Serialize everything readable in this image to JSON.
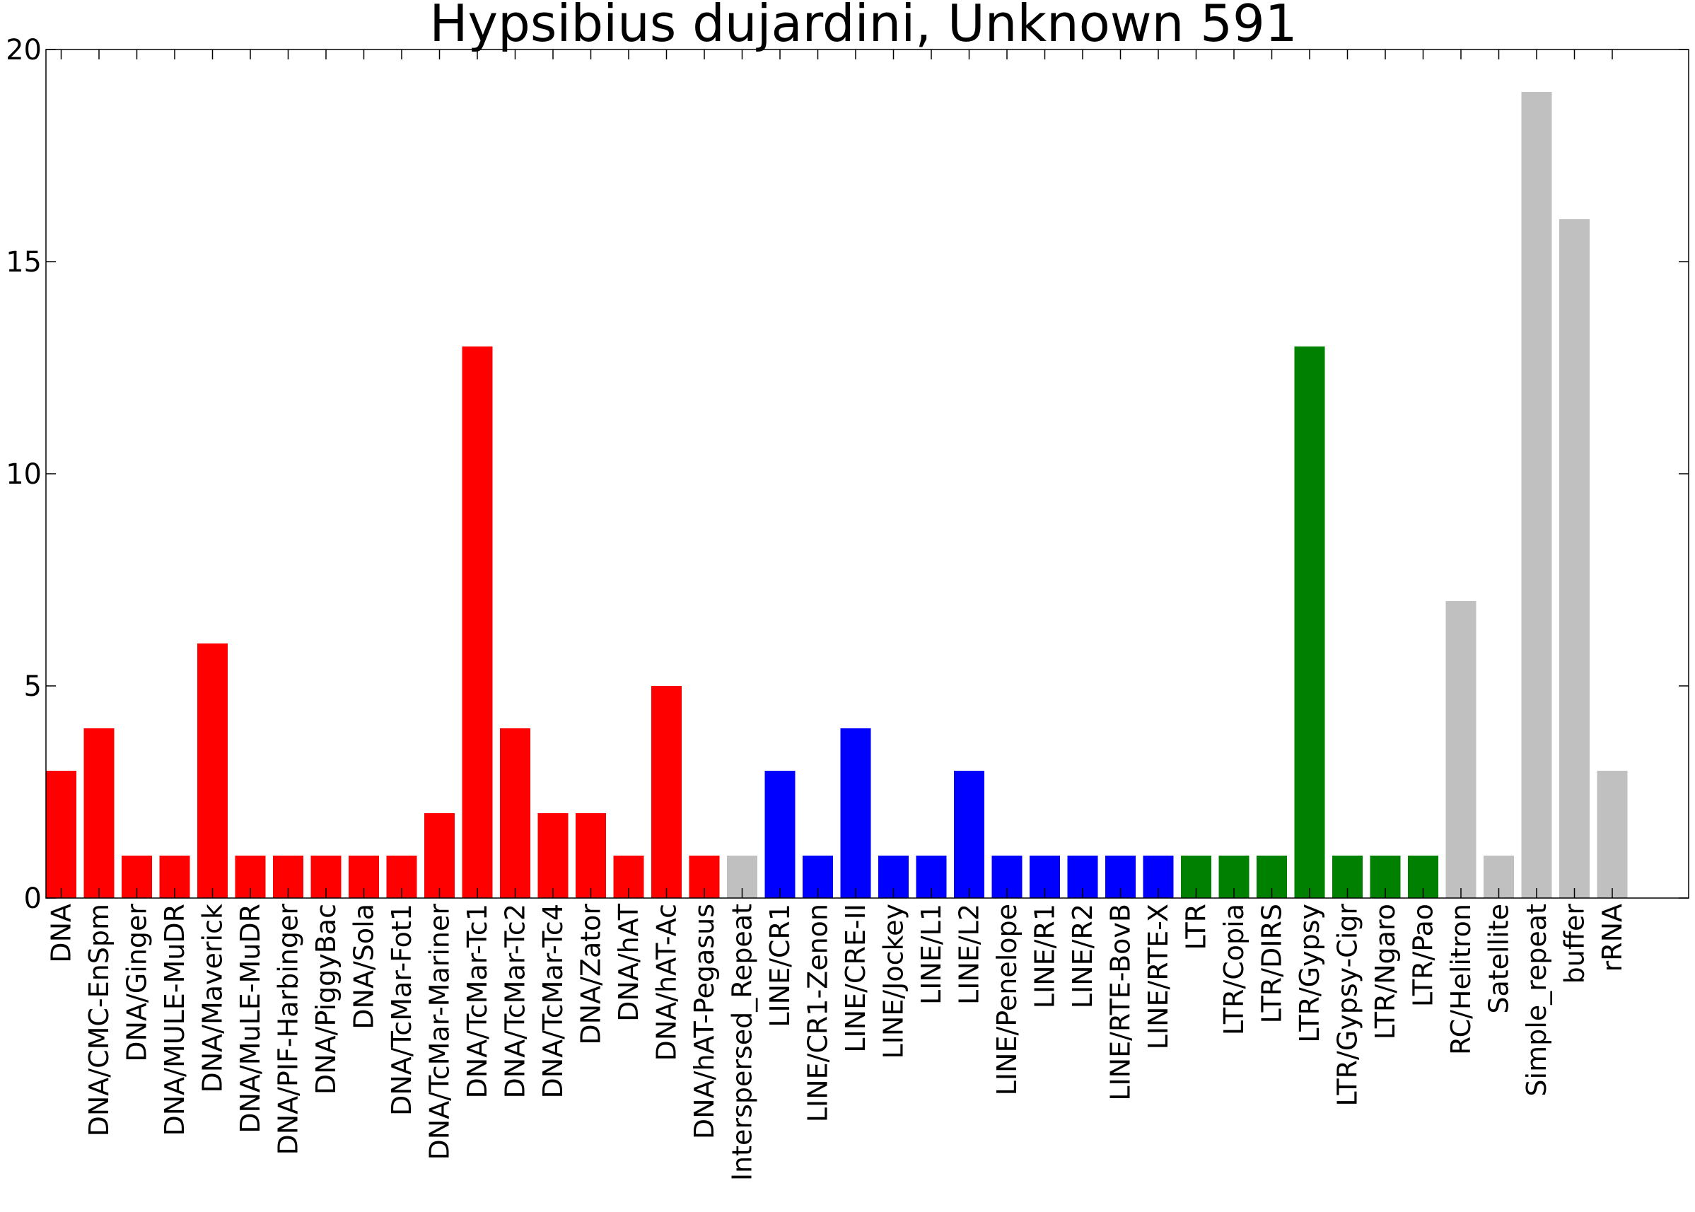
{
  "chart_data": {
    "type": "bar",
    "title": "Hypsibius dujardini, Unknown 591",
    "xlabel": "",
    "ylabel": "",
    "ylim": [
      0,
      20
    ],
    "yticks": [
      "0",
      "5",
      "10",
      "15",
      "20"
    ],
    "grid": false,
    "legend": "none",
    "categories": [
      "DNA",
      "DNA/CMC-EnSpm",
      "DNA/Ginger",
      "DNA/MULE-MuDR",
      "DNA/Maverick",
      "DNA/MuLE-MuDR",
      "DNA/PIF-Harbinger",
      "DNA/PiggyBac",
      "DNA/Sola",
      "DNA/TcMar-Fot1",
      "DNA/TcMar-Mariner",
      "DNA/TcMar-Tc1",
      "DNA/TcMar-Tc2",
      "DNA/TcMar-Tc4",
      "DNA/Zator",
      "DNA/hAT",
      "DNA/hAT-Ac",
      "DNA/hAT-Pegasus",
      "Interspersed_Repeat",
      "LINE/CR1",
      "LINE/CR1-Zenon",
      "LINE/CRE-II",
      "LINE/Jockey",
      "LINE/L1",
      "LINE/L2",
      "LINE/Penelope",
      "LINE/R1",
      "LINE/R2",
      "LINE/RTE-BovB",
      "LINE/RTE-X",
      "LTR",
      "LTR/Copia",
      "LTR/DIRS",
      "LTR/Gypsy",
      "LTR/Gypsy-Cigr",
      "LTR/Ngaro",
      "LTR/Pao",
      "RC/Helitron",
      "Satellite",
      "Simple_repeat",
      "buffer",
      "rRNA"
    ],
    "values": [
      3,
      4,
      1,
      1,
      6,
      1,
      1,
      1,
      1,
      1,
      2,
      13,
      4,
      2,
      2,
      1,
      5,
      1,
      1,
      3,
      1,
      4,
      1,
      1,
      3,
      1,
      1,
      1,
      1,
      1,
      1,
      1,
      1,
      13,
      1,
      1,
      1,
      7,
      1,
      19,
      16,
      3
    ],
    "colors": [
      "#ff0000",
      "#ff0000",
      "#ff0000",
      "#ff0000",
      "#ff0000",
      "#ff0000",
      "#ff0000",
      "#ff0000",
      "#ff0000",
      "#ff0000",
      "#ff0000",
      "#ff0000",
      "#ff0000",
      "#ff0000",
      "#ff0000",
      "#ff0000",
      "#ff0000",
      "#ff0000",
      "#c0c0c0",
      "#0000ff",
      "#0000ff",
      "#0000ff",
      "#0000ff",
      "#0000ff",
      "#0000ff",
      "#0000ff",
      "#0000ff",
      "#0000ff",
      "#0000ff",
      "#0000ff",
      "#008000",
      "#008000",
      "#008000",
      "#008000",
      "#008000",
      "#008000",
      "#008000",
      "#c0c0c0",
      "#c0c0c0",
      "#c0c0c0",
      "#c0c0c0",
      "#c0c0c0"
    ]
  }
}
